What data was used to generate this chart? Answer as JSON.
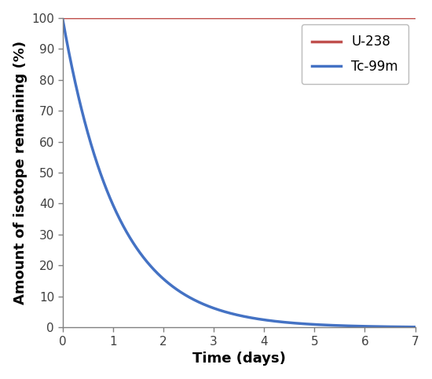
{
  "title": "",
  "xlabel": "Time (days)",
  "ylabel": "Amount of isotope remaining (%)",
  "xlim": [
    0,
    7
  ],
  "ylim": [
    0,
    100
  ],
  "xticks": [
    0,
    1,
    2,
    3,
    4,
    5,
    6,
    7
  ],
  "yticks": [
    0,
    10,
    20,
    30,
    40,
    50,
    60,
    70,
    80,
    90,
    100
  ],
  "u238_color": "#c0504d",
  "tc99m_color": "#4472c4",
  "u238_label": "U-238",
  "tc99m_label": "Tc-99m",
  "half_life_tc99m": 0.75,
  "line_width": 2.5,
  "legend_fontsize": 12,
  "axis_label_fontsize": 13,
  "tick_fontsize": 11,
  "background_color": "#ffffff",
  "figsize": [
    5.5,
    4.83
  ],
  "dpi": 100,
  "spine_color": "#808080",
  "tick_color": "#404040"
}
